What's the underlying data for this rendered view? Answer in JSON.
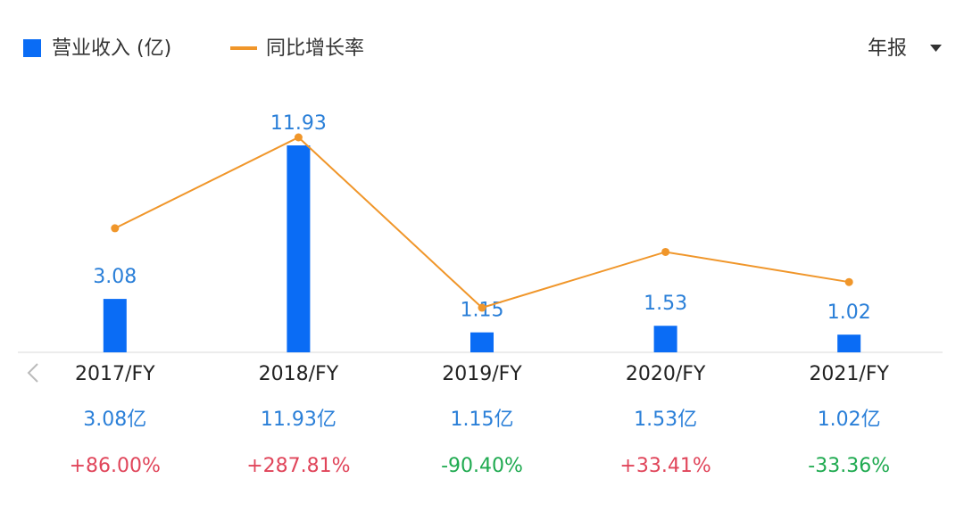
{
  "chart_data": {
    "type": "bar",
    "categories": [
      "2017/FY",
      "2018/FY",
      "2019/FY",
      "2020/FY",
      "2021/FY"
    ],
    "period_selector": "年报",
    "series": [
      {
        "name": "营业收入 (亿)",
        "type": "bar",
        "color": "#0a6cf5",
        "values": [
          3.08,
          11.93,
          1.15,
          1.53,
          1.02
        ],
        "value_labels": [
          "3.08亿",
          "11.93亿",
          "1.15亿",
          "1.53亿",
          "1.02亿"
        ]
      },
      {
        "name": "同比增长率",
        "type": "line",
        "axis": "y2",
        "color": "#f0962a",
        "values": [
          86.0,
          287.81,
          -90.4,
          33.41,
          -33.36
        ],
        "value_labels": [
          "+86.00%",
          "+287.81%",
          "-90.40%",
          "+33.41%",
          "-33.36%"
        ]
      }
    ]
  }
}
